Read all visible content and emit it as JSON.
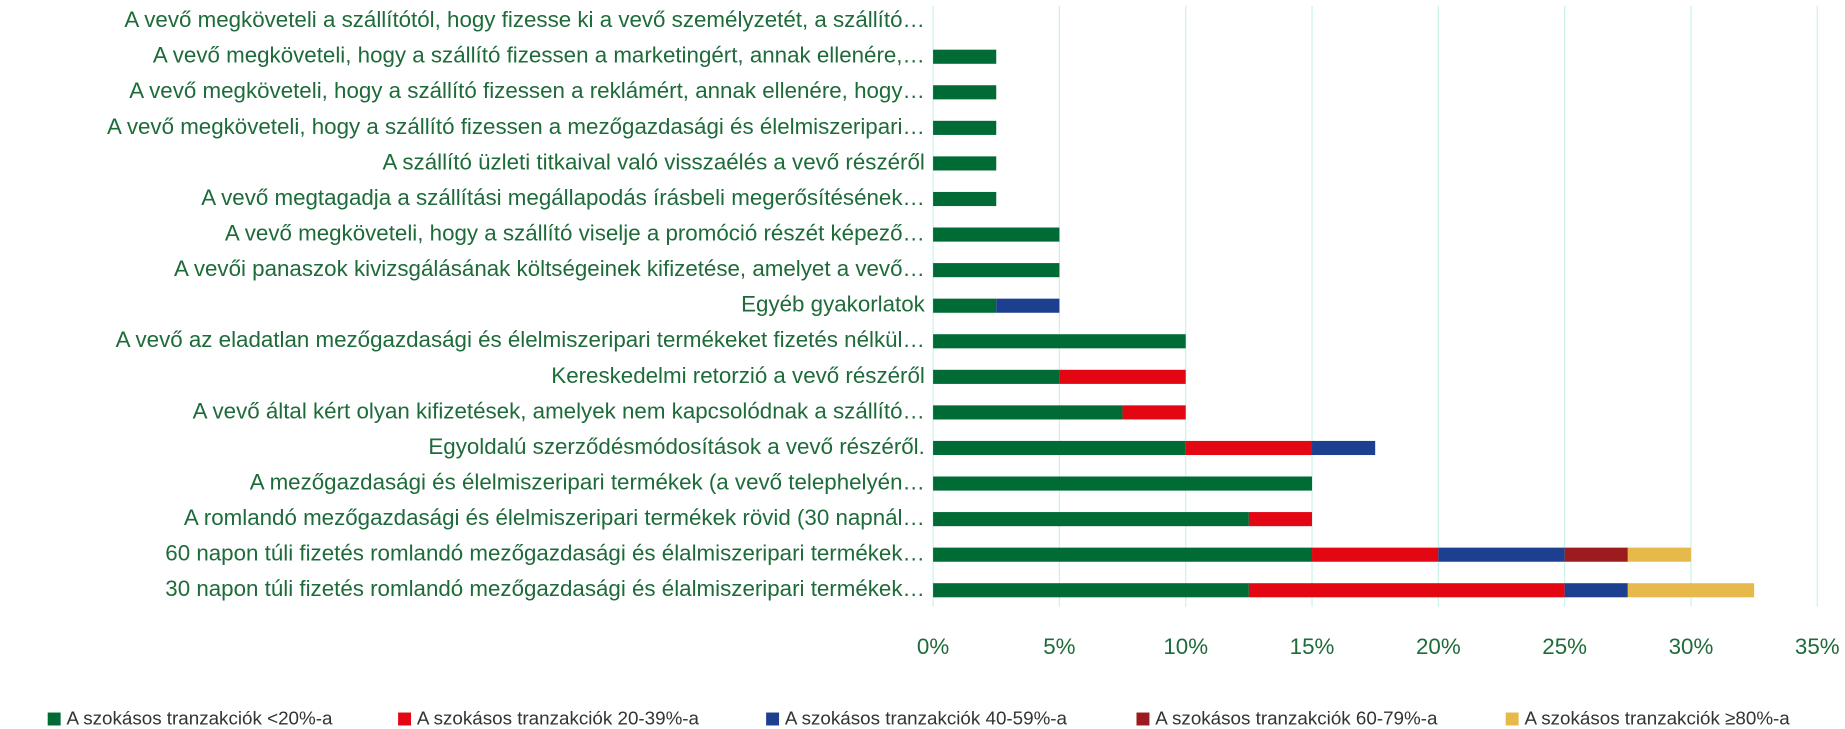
{
  "chart_data": {
    "type": "stacked-barh",
    "categories": [
      "A vevő megköveteli a szállítótól, hogy fizesse ki a vevő személyzetét, a szállító…",
      "A vevő megköveteli, hogy a szállító fizessen a marketingért, annak ellenére,…",
      "A vevő megköveteli, hogy a szállító fizessen a reklámért, annak ellenére, hogy…",
      "A vevő megköveteli, hogy a szállító fizessen a mezőgazdasági és élelmiszeripari…",
      "A szállító üzleti titkaival való visszaélés a vevő részéről",
      "A vevő megtagadja a szállítási megállapodás írásbeli megerősítésének…",
      "A vevő megköveteli, hogy a szállító viselje a promóció részét képező…",
      "A vevői panaszok kivizsgálásának költségeinek kifizetése, amelyet a vevő…",
      "Egyéb gyakorlatok",
      "A vevő az eladatlan mezőgazdasági és élelmiszeripari termékeket fizetés nélkül…",
      "Kereskedelmi retorzió a vevő részéről",
      "A vevő által kért olyan kifizetések, amelyek nem kapcsolódnak a szállító…",
      "Egyoldalú szerződésmódosítások a vevő részéről.",
      "A mezőgazdasági és élelmiszeripari termékek (a vevő telephelyén…",
      "A romlandó mezőgazdasági és élelmiszeripari termékek rövid (30 napnál…",
      "60 napon túli fizetés romlandó mezőgazdasági és élalmiszeripari termékek…",
      "30 napon túli fizetés romlandó mezőgazdasági és élalmiszeripari termékek…"
    ],
    "series": [
      {
        "name": "A szokásos tranzakciók <20%-a",
        "color": "#006b35",
        "values": [
          0,
          2.5,
          2.5,
          2.5,
          2.5,
          2.5,
          5,
          5,
          2.5,
          10,
          5,
          7.5,
          10,
          15,
          12.5,
          15,
          12.5
        ]
      },
      {
        "name": "A szokásos tranzakciók 20-39%-a",
        "color": "#e30613",
        "values": [
          0,
          0,
          0,
          0,
          0,
          0,
          0,
          0,
          0,
          0,
          5,
          2.5,
          5,
          0,
          2.5,
          5,
          12.5
        ]
      },
      {
        "name": "A szokásos tranzakciók 40-59%-a",
        "color": "#1d3f8f",
        "values": [
          0,
          0,
          0,
          0,
          0,
          0,
          0,
          0,
          2.5,
          0,
          0,
          0,
          2.5,
          0,
          0,
          5,
          2.5
        ]
      },
      {
        "name": "A szokásos tranzakciók 60-79%-a",
        "color": "#9b1b1f",
        "values": [
          0,
          0,
          0,
          0,
          0,
          0,
          0,
          0,
          0,
          0,
          0,
          0,
          0,
          0,
          0,
          2.5,
          0
        ]
      },
      {
        "name": "A szokásos tranzakciók ≥80%-a",
        "color": "#e6b94a",
        "values": [
          0,
          0,
          0,
          0,
          0,
          0,
          0,
          0,
          0,
          0,
          0,
          0,
          0,
          0,
          0,
          2.5,
          5
        ]
      }
    ],
    "xlim": [
      0,
      35
    ],
    "xticks": [
      {
        "value": 0,
        "label": "0%"
      },
      {
        "value": 5,
        "label": "5%"
      },
      {
        "value": 10,
        "label": "10%"
      },
      {
        "value": 15,
        "label": "15%"
      },
      {
        "value": 20,
        "label": "20%"
      },
      {
        "value": 25,
        "label": "25%"
      },
      {
        "value": 30,
        "label": "30%"
      },
      {
        "value": 35,
        "label": "35%"
      }
    ],
    "grid": true,
    "legend": "bottom"
  }
}
